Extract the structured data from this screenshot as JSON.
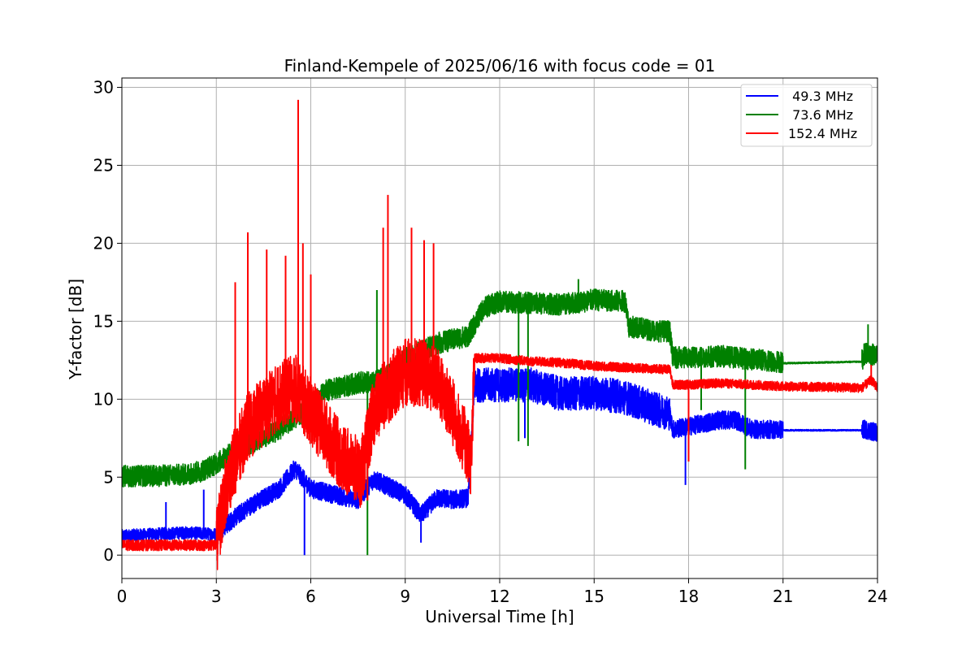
{
  "chart_data": {
    "type": "line",
    "title": "Finland-Kempele of 2025/06/16 with focus code = 01",
    "xlabel": "Universal Time [h]",
    "ylabel": "Y-factor [dB]",
    "xlim": [
      0,
      24
    ],
    "ylim": [
      -1.5,
      30.6
    ],
    "xticks": [
      0,
      3,
      6,
      9,
      12,
      15,
      18,
      21,
      24
    ],
    "yticks": [
      0,
      5,
      10,
      15,
      20,
      25,
      30
    ],
    "grid": true,
    "legend_position": "top-right",
    "series": [
      {
        "name": " 49.3 MHz",
        "color": "#0000ff",
        "noise": 0.6,
        "x": [
          0,
          1,
          2,
          3,
          3.5,
          4,
          5,
          5.5,
          6,
          7,
          7.5,
          8,
          9,
          9.5,
          10,
          10.5,
          11,
          11.2,
          12,
          13,
          14,
          15,
          16,
          17,
          17.4,
          17.5,
          18,
          19,
          19.5,
          20,
          21,
          23.5,
          23.6,
          24
        ],
        "y": [
          1.2,
          1.3,
          1.4,
          1.3,
          2.2,
          3.0,
          4.2,
          5.5,
          4.2,
          3.7,
          3.5,
          4.8,
          3.8,
          2.5,
          3.6,
          3.5,
          3.6,
          10.8,
          10.8,
          10.8,
          10.2,
          10.3,
          10.0,
          9.2,
          9.0,
          8.0,
          8.2,
          8.6,
          8.6,
          8.0,
          8.0,
          8.0,
          8.0,
          7.8
        ],
        "spikes": [
          {
            "x": 1.4,
            "y": 3.4
          },
          {
            "x": 2.6,
            "y": 4.2
          },
          {
            "x": 5.8,
            "y": 0.0
          },
          {
            "x": 7.2,
            "y": 5.5
          },
          {
            "x": 9.5,
            "y": 0.8
          },
          {
            "x": 12.8,
            "y": 7.5
          },
          {
            "x": 17.9,
            "y": 4.5
          },
          {
            "x": 19.6,
            "y": 8.5
          }
        ]
      },
      {
        "name": " 73.6 MHz",
        "color": "#008000",
        "noise": 0.7,
        "x": [
          0,
          1,
          2,
          2.5,
          3,
          3.5,
          4,
          5,
          6,
          6.5,
          7,
          7.5,
          8,
          8.5,
          9,
          10,
          11,
          11.5,
          12,
          13,
          14,
          15,
          16,
          16.1,
          17,
          17.4,
          17.5,
          18,
          19,
          20,
          21,
          23.5,
          23.6,
          24
        ],
        "y": [
          5.0,
          5.0,
          5.1,
          5.3,
          5.8,
          6.5,
          7.0,
          8.0,
          9.5,
          10.5,
          10.7,
          11.0,
          11.0,
          11.5,
          12.5,
          13.5,
          14.0,
          15.8,
          16.2,
          16.1,
          16.0,
          16.3,
          16.2,
          14.6,
          14.3,
          14.3,
          12.6,
          12.6,
          12.7,
          12.5,
          12.3,
          12.4,
          12.9,
          12.7
        ],
        "spikes": [
          {
            "x": 7.8,
            "y": 0.0
          },
          {
            "x": 8.1,
            "y": 17.0
          },
          {
            "x": 12.9,
            "y": 7.0
          },
          {
            "x": 12.6,
            "y": 7.3
          },
          {
            "x": 14.5,
            "y": 17.7
          },
          {
            "x": 18.4,
            "y": 9.3
          },
          {
            "x": 19.8,
            "y": 5.5
          },
          {
            "x": 23.7,
            "y": 14.8
          }
        ]
      },
      {
        "name": "152.4 MHz",
        "color": "#ff0000",
        "noise": 2.2,
        "x": [
          0,
          1,
          2,
          3,
          3.3,
          3.7,
          4,
          5,
          5.5,
          6,
          6.5,
          7,
          7.6,
          8,
          8.5,
          9,
          9.5,
          10,
          10.5,
          11,
          11.1,
          11.2,
          12,
          13,
          14,
          15,
          16,
          17,
          17.4,
          17.5,
          18,
          19,
          20,
          21,
          23.5,
          23.8,
          24
        ],
        "y": [
          0.6,
          0.6,
          0.6,
          0.6,
          4.0,
          6.5,
          8.0,
          10.0,
          10.5,
          9.0,
          7.5,
          6.0,
          5.0,
          9.0,
          10.5,
          11.5,
          11.5,
          11.0,
          9.0,
          6.5,
          5.5,
          12.6,
          12.6,
          12.4,
          12.3,
          12.1,
          12.0,
          11.9,
          11.9,
          10.9,
          10.9,
          11.0,
          10.9,
          10.8,
          10.7,
          11.2,
          10.7
        ],
        "spikes": [
          {
            "x": 3.6,
            "y": 17.5
          },
          {
            "x": 4.0,
            "y": 20.7
          },
          {
            "x": 4.6,
            "y": 19.6
          },
          {
            "x": 5.2,
            "y": 19.2
          },
          {
            "x": 5.6,
            "y": 29.2
          },
          {
            "x": 5.75,
            "y": 20.0
          },
          {
            "x": 6.0,
            "y": 18.0
          },
          {
            "x": 8.3,
            "y": 21.0
          },
          {
            "x": 8.45,
            "y": 23.1
          },
          {
            "x": 9.2,
            "y": 21.0
          },
          {
            "x": 9.6,
            "y": 20.2
          },
          {
            "x": 9.9,
            "y": 20.0
          },
          {
            "x": 7.8,
            "y": 3.5
          },
          {
            "x": 18.0,
            "y": 6.0
          },
          {
            "x": 23.8,
            "y": 12.2
          }
        ]
      }
    ]
  }
}
